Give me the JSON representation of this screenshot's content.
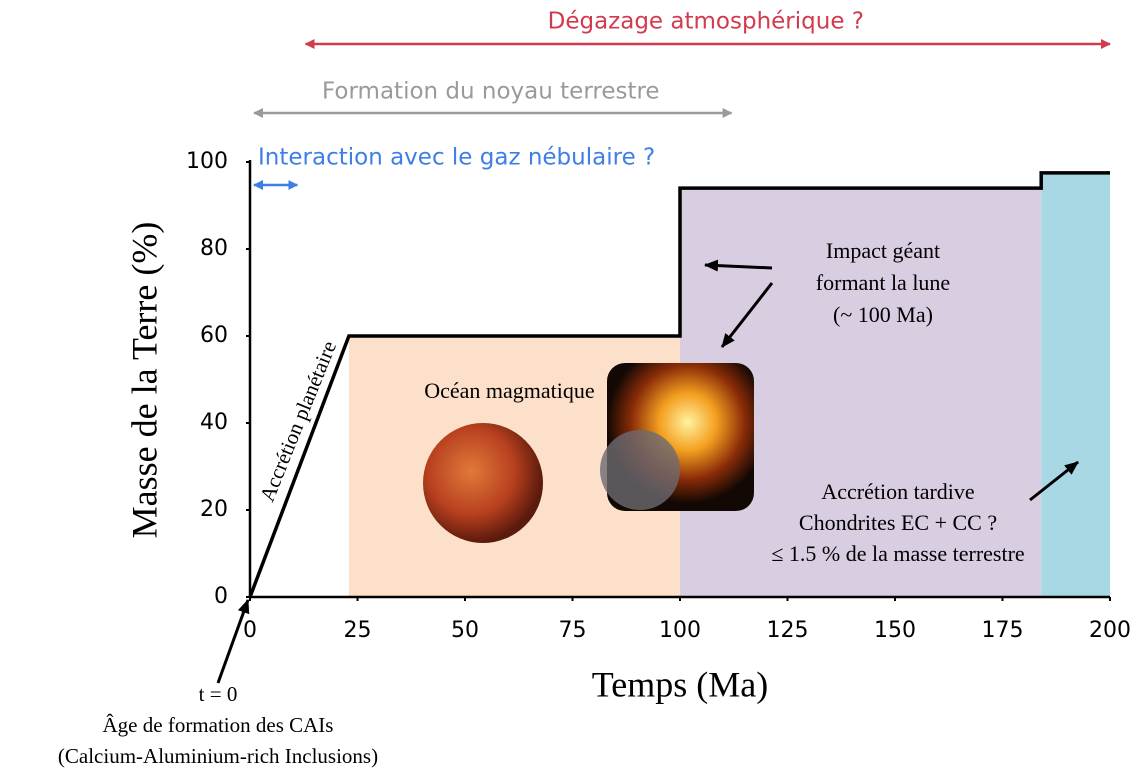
{
  "chart_data": {
    "type": "line",
    "xlabel": "Temps (Ma)",
    "ylabel": "Masse de la Terre (%)",
    "x": [
      0,
      23,
      100,
      100,
      184,
      184,
      200
    ],
    "series": [
      {
        "color": "#000000",
        "values": [
          0,
          60,
          60,
          94,
          94,
          97.5,
          97.5
        ]
      }
    ],
    "xlim": [
      0,
      200
    ],
    "xticks": [
      0,
      25,
      50,
      75,
      100,
      125,
      150,
      175,
      200
    ],
    "ylim": [
      0,
      100
    ],
    "yticks": [
      0,
      20,
      40,
      60,
      80,
      100
    ],
    "regions": [
      {
        "x": [
          23,
          100
        ],
        "color": "#fde0c9",
        "label": "Océan magmatique"
      },
      {
        "x": [
          100,
          184
        ],
        "color": "#d8cde1"
      },
      {
        "x": [
          184,
          200
        ],
        "color": "#a7d8e3"
      }
    ],
    "spans": [
      {
        "label": "Dégazage atmosphérique ?",
        "x": [
          12,
          200
        ],
        "color": "#d23a4e"
      },
      {
        "label": "Formation du noyau terrestre",
        "x": [
          0,
          112
        ],
        "color": "#9a9a9a"
      },
      {
        "label": "Interaction avec le gaz nébulaire ?",
        "x": [
          0,
          11
        ],
        "color": "#3d7fe6"
      }
    ],
    "annotations": {
      "accretion": "Accrétion planétaire",
      "impact": [
        "Impact géant",
        "formant la lune",
        "(~ 100 Ma)"
      ],
      "late": [
        "Accrétion tardive",
        "Chondrites EC + CC ?",
        "≤ 1.5 % de la masse terrestre"
      ],
      "origin": [
        "t = 0",
        "Âge de formation des CAIs",
        "(Calcium-Aluminium-rich Inclusions)"
      ]
    }
  }
}
